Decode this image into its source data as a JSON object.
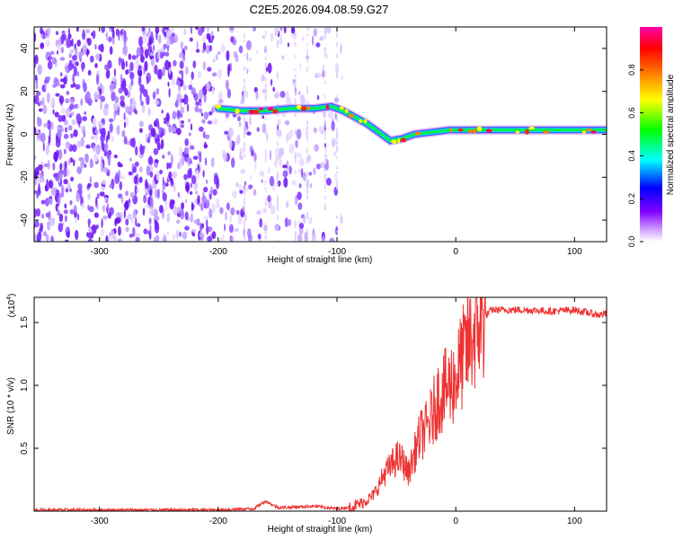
{
  "title": "C2E5.2026.094.08.59.G27",
  "chart_data": [
    {
      "type": "heatmap",
      "xlabel": "Height of straight line (km)",
      "ylabel": "Frequency (Hz)",
      "xlim": [
        -355,
        127
      ],
      "ylim": [
        -50,
        50
      ],
      "xticks": [
        -300,
        -200,
        -100,
        0,
        100
      ],
      "yticks": [
        -40,
        -20,
        0,
        20,
        40
      ],
      "colorbar": {
        "label": "Normalized spectral amplitude",
        "range": [
          0,
          1
        ],
        "ticks": [
          0.0,
          0.2,
          0.4,
          0.6,
          0.8
        ],
        "colors": [
          "#ffffff",
          "#bb99ff",
          "#8000ff",
          "#0000ff",
          "#00ffff",
          "#00ff00",
          "#ffff00",
          "#ff8000",
          "#ff0000",
          "#ff00aa"
        ]
      },
      "ridge": {
        "x": [
          -200,
          -180,
          -160,
          -140,
          -120,
          -105,
          -95,
          -85,
          -75,
          -65,
          -55,
          -45,
          -35,
          -20,
          -5,
          0,
          10,
          30,
          60,
          90,
          127
        ],
        "y": [
          12,
          11,
          11,
          12,
          12,
          13,
          11,
          8,
          5,
          1,
          -3,
          -2,
          0,
          1,
          2,
          2,
          2,
          2,
          2,
          2,
          2
        ]
      }
    },
    {
      "type": "line",
      "xlabel": "Height of straight line (km)",
      "ylabel": "SNR (10 * v/v)",
      "y_multiplier": "(x10",
      "y_multiplier_exp": "4",
      "y_multiplier_close": ")",
      "xlim": [
        -355,
        127
      ],
      "ylim": [
        0,
        1.7
      ],
      "xticks": [
        -300,
        -200,
        -100,
        0,
        100
      ],
      "yticks": [
        0.5,
        1.0,
        1.5
      ],
      "ytick_labels": [
        "0.5",
        "1.0",
        "1.5"
      ],
      "color": "#ee3333",
      "series": {
        "x": [
          -355,
          -300,
          -250,
          -200,
          -170,
          -160,
          -150,
          -140,
          -120,
          -100,
          -90,
          -80,
          -70,
          -65,
          -60,
          -55,
          -50,
          -45,
          -40,
          -35,
          -30,
          -25,
          -20,
          -15,
          -10,
          -5,
          0,
          5,
          10,
          15,
          20,
          25,
          30,
          40,
          60,
          80,
          100,
          110,
          120,
          127
        ],
        "y": [
          0.01,
          0.01,
          0.01,
          0.01,
          0.02,
          0.08,
          0.03,
          0.03,
          0.04,
          0.02,
          0.03,
          0.06,
          0.12,
          0.2,
          0.3,
          0.35,
          0.42,
          0.4,
          0.3,
          0.45,
          0.6,
          0.65,
          0.75,
          0.9,
          0.95,
          1.0,
          1.05,
          1.2,
          1.3,
          1.4,
          1.5,
          1.55,
          1.6,
          1.6,
          1.6,
          1.59,
          1.6,
          1.58,
          1.56,
          1.57
        ]
      }
    }
  ]
}
